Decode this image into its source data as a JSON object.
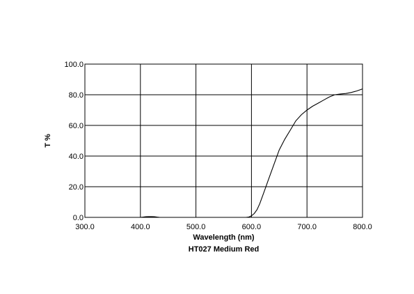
{
  "chart_data": {
    "type": "line",
    "title": "HT027 Medium Red",
    "xlabel": "Wavelength (nm)",
    "ylabel": "T %",
    "xlim": [
      300,
      800
    ],
    "ylim": [
      0,
      100
    ],
    "grid": true,
    "x_ticks": [
      "300.0",
      "400.0",
      "500.0",
      "600.0",
      "700.0",
      "800.0"
    ],
    "y_ticks": [
      "0.0",
      "20.0",
      "40.0",
      "60.0",
      "80.0",
      "100.0"
    ],
    "series": [
      {
        "color": "#000000",
        "x": [
          300,
          350,
          400,
          405,
          410,
          415,
          420,
          425,
          430,
          435,
          500,
          550,
          590,
          595,
          600,
          605,
          610,
          615,
          620,
          625,
          630,
          640,
          650,
          660,
          670,
          680,
          690,
          700,
          710,
          720,
          730,
          740,
          750,
          760,
          770,
          780,
          790,
          800
        ],
        "y": [
          0,
          0,
          0,
          0.2,
          0.4,
          0.5,
          0.5,
          0.4,
          0.2,
          0,
          0,
          0,
          0,
          0.2,
          1,
          2.5,
          5,
          9,
          14,
          19,
          24,
          34,
          44,
          51,
          57,
          63,
          67,
          70,
          72.5,
          74.5,
          76.5,
          78.5,
          80,
          80.5,
          80.8,
          81.5,
          82.5,
          83.8
        ]
      }
    ]
  }
}
